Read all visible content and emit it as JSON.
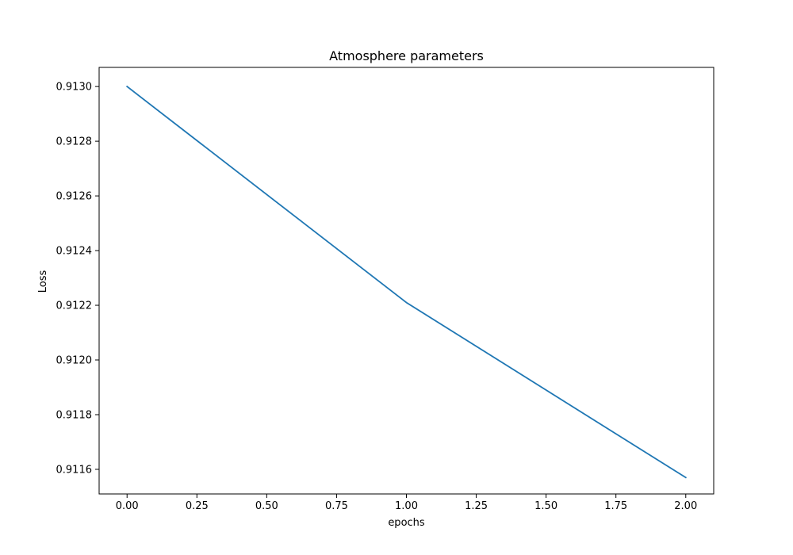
{
  "chart_data": {
    "type": "line",
    "title": "Atmosphere parameters",
    "xlabel": "epochs",
    "ylabel": "Loss",
    "xlim": [
      -0.1,
      2.1
    ],
    "ylim": [
      0.91151,
      0.91307
    ],
    "x_ticks": [
      0.0,
      0.25,
      0.5,
      0.75,
      1.0,
      1.25,
      1.5,
      1.75,
      2.0
    ],
    "x_tick_labels": [
      "0.00",
      "0.25",
      "0.50",
      "0.75",
      "1.00",
      "1.25",
      "1.50",
      "1.75",
      "2.00"
    ],
    "y_ticks": [
      0.9116,
      0.9118,
      0.912,
      0.9122,
      0.9124,
      0.9126,
      0.9128,
      0.913
    ],
    "y_tick_labels": [
      "0.9116",
      "0.9118",
      "0.9120",
      "0.9122",
      "0.9124",
      "0.9126",
      "0.9128",
      "0.9130"
    ],
    "grid": false,
    "series": [
      {
        "color": "#1f77b4",
        "x": [
          0,
          1,
          2
        ],
        "values": [
          0.913,
          0.91221,
          0.91157
        ]
      }
    ]
  }
}
